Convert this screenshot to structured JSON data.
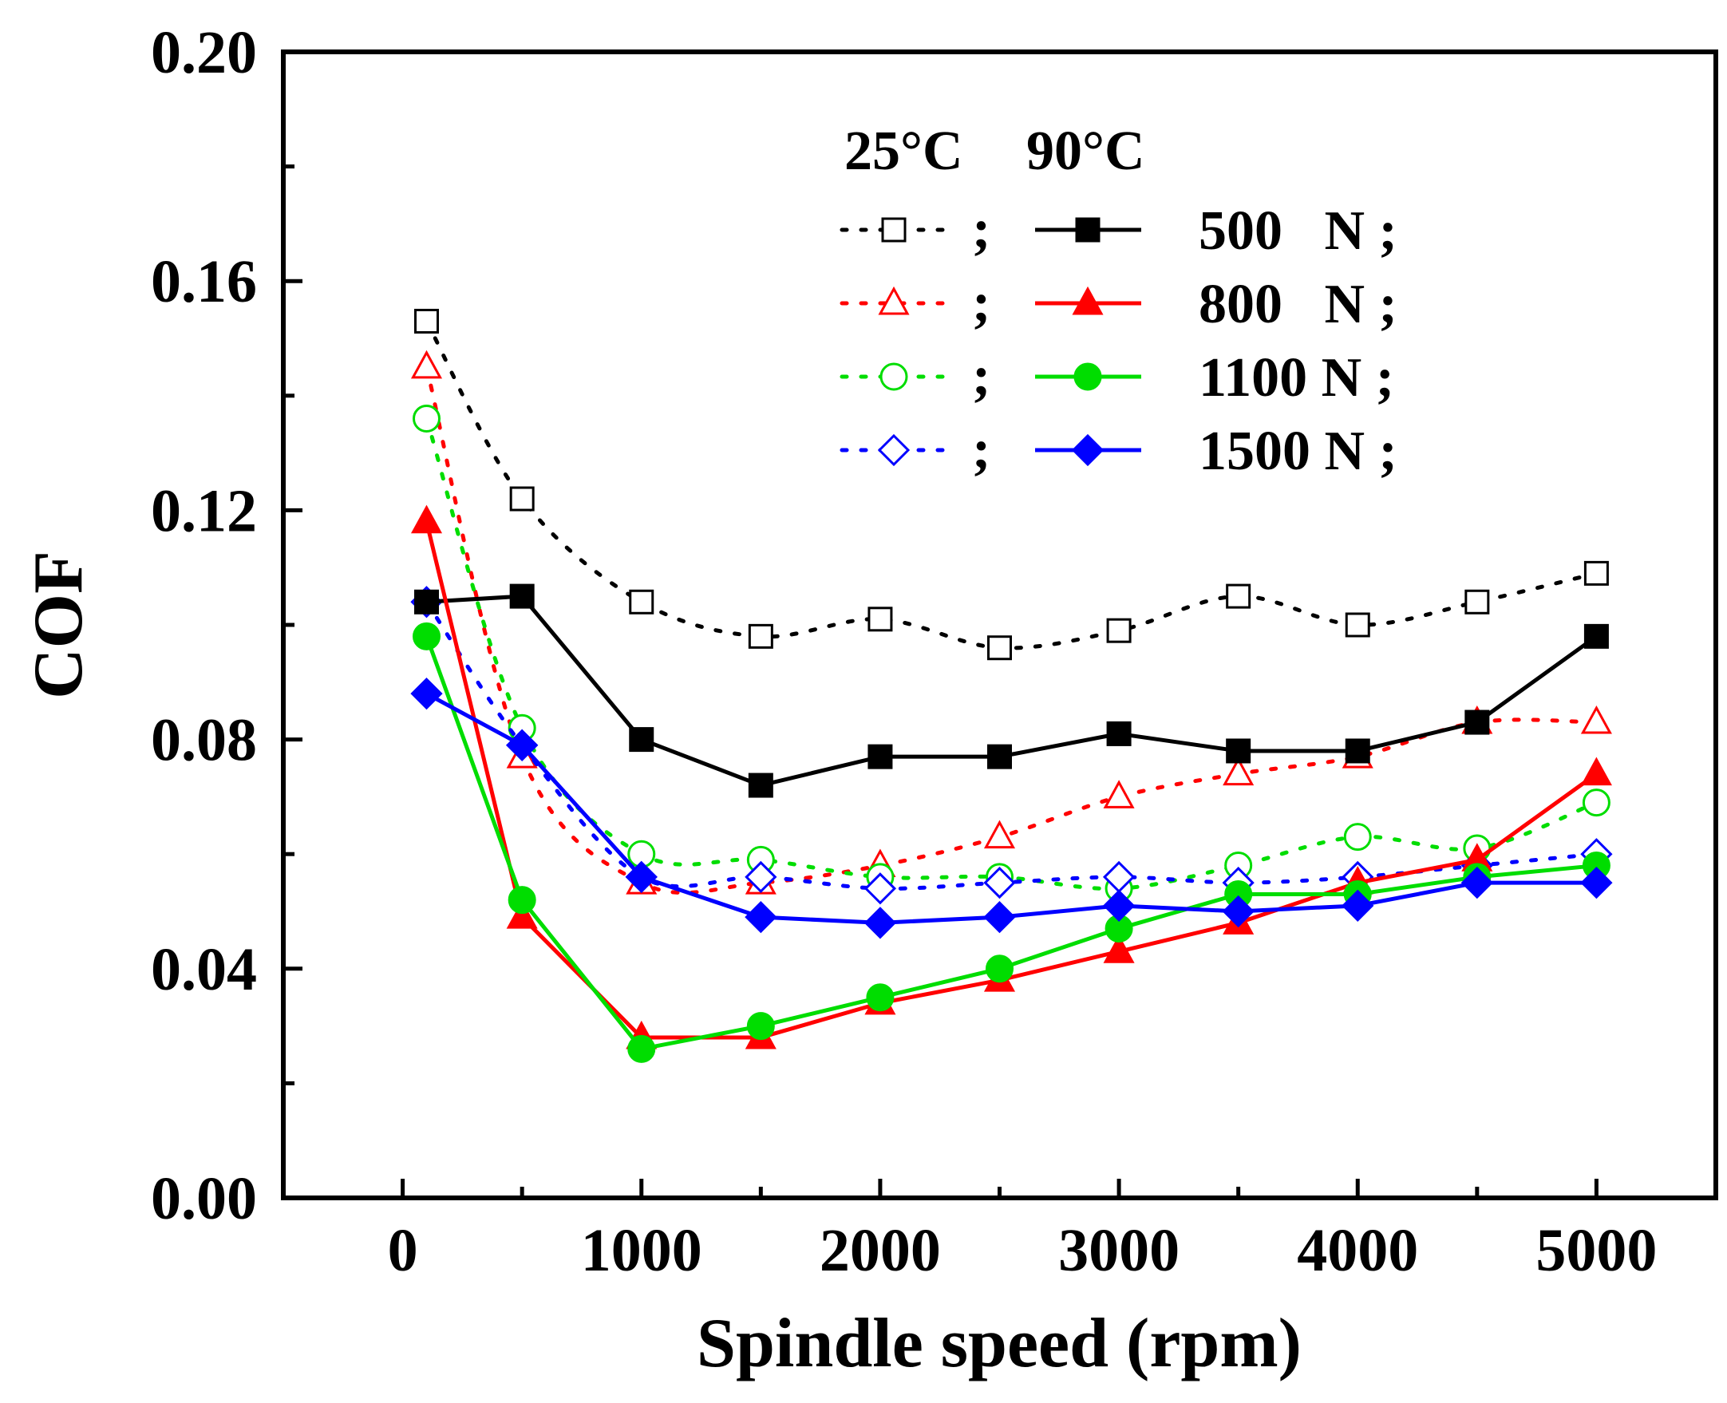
{
  "chart_data": {
    "type": "line",
    "title": "",
    "xlabel": "Spindle speed (rpm)",
    "ylabel": "COF",
    "xlim": [
      -500,
      5500
    ],
    "ylim": [
      0.0,
      0.2
    ],
    "x_ticks": [
      0,
      1000,
      2000,
      3000,
      4000,
      5000
    ],
    "x_tick_labels": [
      "0",
      "1000",
      "2000",
      "3000",
      "4000",
      "5000"
    ],
    "y_ticks": [
      0.0,
      0.04,
      0.08,
      0.12,
      0.16,
      0.2
    ],
    "y_tick_labels": [
      "0.00",
      "0.04",
      "0.08",
      "0.12",
      "0.16",
      "0.20"
    ],
    "grid": false,
    "legend": {
      "placement": "top-center",
      "header_25": "25°C",
      "header_90": "90°C",
      "separator": ";",
      "entries": [
        "500   N ;",
        "800   N ;",
        "1100 N ;",
        "1500 N ;"
      ]
    },
    "x": [
      100,
      500,
      1000,
      1500,
      2000,
      2500,
      3000,
      3500,
      4000,
      4500,
      5000
    ],
    "series": [
      {
        "name": "25°C 500 N",
        "color": "#000000",
        "marker": "square",
        "filled": false,
        "dashed": true,
        "values": [
          0.153,
          0.122,
          0.104,
          0.098,
          0.101,
          0.096,
          0.099,
          0.105,
          0.1,
          0.104,
          0.109
        ]
      },
      {
        "name": "25°C 800 N",
        "color": "#ff0000",
        "marker": "triangle",
        "filled": false,
        "dashed": true,
        "values": [
          0.145,
          0.077,
          0.055,
          0.055,
          0.058,
          0.063,
          0.07,
          0.074,
          0.077,
          0.083,
          0.083
        ]
      },
      {
        "name": "25°C 1100 N",
        "color": "#00dd00",
        "marker": "circle",
        "filled": false,
        "dashed": true,
        "values": [
          0.136,
          0.082,
          0.06,
          0.059,
          0.056,
          0.056,
          0.054,
          0.058,
          0.063,
          0.061,
          0.069
        ]
      },
      {
        "name": "25°C 1500 N",
        "color": "#0000ff",
        "marker": "diamond",
        "filled": false,
        "dashed": true,
        "values": [
          0.104,
          0.079,
          0.056,
          0.056,
          0.054,
          0.055,
          0.056,
          0.055,
          0.056,
          0.058,
          0.06
        ]
      },
      {
        "name": "90°C 500 N",
        "color": "#000000",
        "marker": "square",
        "filled": true,
        "dashed": false,
        "values": [
          0.104,
          0.105,
          0.08,
          0.072,
          0.077,
          0.077,
          0.081,
          0.078,
          0.078,
          0.083,
          0.098
        ]
      },
      {
        "name": "90°C 800 N",
        "color": "#ff0000",
        "marker": "triangle",
        "filled": true,
        "dashed": false,
        "values": [
          0.118,
          0.049,
          0.028,
          0.028,
          0.034,
          0.038,
          0.043,
          0.048,
          0.055,
          0.059,
          0.074
        ]
      },
      {
        "name": "90°C 1100 N",
        "color": "#00dd00",
        "marker": "circle",
        "filled": true,
        "dashed": false,
        "values": [
          0.098,
          0.052,
          0.026,
          0.03,
          0.035,
          0.04,
          0.047,
          0.053,
          0.053,
          0.056,
          0.058
        ]
      },
      {
        "name": "90°C 1500 N",
        "color": "#0000ff",
        "marker": "diamond",
        "filled": true,
        "dashed": false,
        "values": [
          0.088,
          0.079,
          0.056,
          0.049,
          0.048,
          0.049,
          0.051,
          0.05,
          0.051,
          0.055,
          0.055
        ]
      }
    ]
  }
}
